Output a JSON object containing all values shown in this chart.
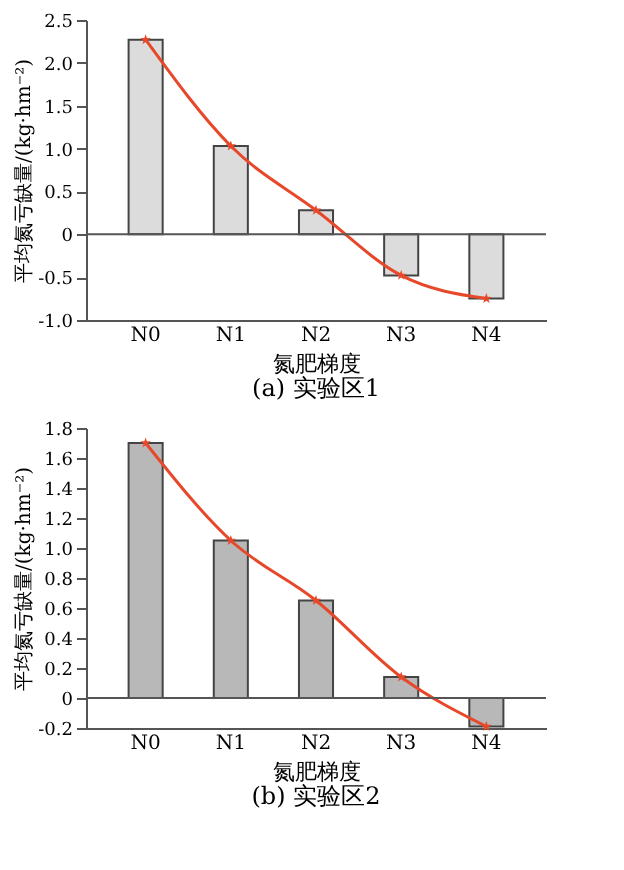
{
  "chart_data": [
    {
      "type": "bar",
      "title": "(a) 实验区1",
      "xlabel": "氮肥梯度",
      "ylabel": "平均氮亏缺量/(kg·hm⁻²)",
      "categories": [
        "N0",
        "N1",
        "N2",
        "N3",
        "N4"
      ],
      "series": [
        {
          "color": "#dcdcdc",
          "values": [
            2.27,
            1.03,
            0.28,
            -0.48,
            -0.75
          ]
        },
        {
          "type": "line",
          "color": "#e8482a",
          "values": [
            2.27,
            1.03,
            0.28,
            -0.48,
            -0.75
          ],
          "marker": "star"
        }
      ],
      "ylim": [
        -1.0,
        2.5
      ],
      "yticks": [
        {
          "value": -1.0,
          "label": "-1.0"
        },
        -0.5,
        0,
        0.5,
        {
          "value": 1.0,
          "label": "1.0"
        },
        1.5,
        {
          "value": 2.0,
          "label": "2.0"
        },
        2.5
      ],
      "ref_lines": [
        {
          "axis": "y",
          "value": 0,
          "color": "#555555"
        }
      ]
    },
    {
      "type": "bar",
      "title": "(b) 实验区2",
      "xlabel": "氮肥梯度",
      "ylabel": "平均氮亏缺量/(kg·hm⁻²)",
      "categories": [
        "N0",
        "N1",
        "N2",
        "N3",
        "N4"
      ],
      "series": [
        {
          "color": "#b8b8b8",
          "values": [
            1.7,
            1.05,
            0.65,
            0.14,
            -0.19
          ]
        },
        {
          "type": "line",
          "color": "#e8482a",
          "values": [
            1.7,
            1.05,
            0.65,
            0.14,
            -0.19
          ],
          "marker": "star"
        }
      ],
      "ylim": [
        -0.2,
        1.8
      ],
      "yticks": [
        -0.2,
        0,
        0.2,
        0.4,
        0.6,
        0.8,
        {
          "value": 1.0,
          "label": "1.0"
        },
        1.2,
        1.4,
        1.6,
        1.8
      ],
      "ref_lines": [
        {
          "axis": "y",
          "value": 0,
          "color": "#555555"
        }
      ]
    }
  ]
}
